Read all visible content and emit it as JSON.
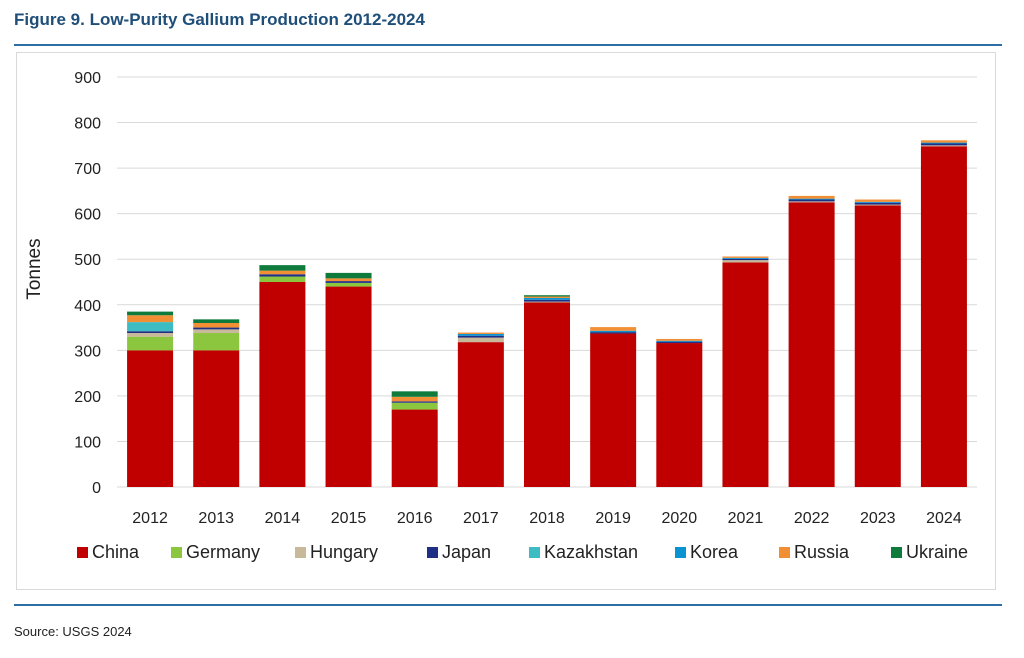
{
  "figure": {
    "title": "Figure 9. Low-Purity Gallium Production 2012-2024",
    "source": "Source: USGS 2024"
  },
  "chart_data": {
    "type": "bar",
    "stacked": true,
    "ylabel": "Tonnes",
    "ylim": [
      0,
      900
    ],
    "yticks": [
      0,
      100,
      200,
      300,
      400,
      500,
      600,
      700,
      800,
      900
    ],
    "grid": true,
    "legend_position": "bottom",
    "categories": [
      "2012",
      "2013",
      "2014",
      "2015",
      "2016",
      "2017",
      "2018",
      "2019",
      "2020",
      "2021",
      "2022",
      "2023",
      "2024"
    ],
    "series": [
      {
        "name": "China",
        "color": "#c00000",
        "values": [
          300,
          300,
          450,
          440,
          170,
          318,
          405,
          337,
          316,
          493,
          625,
          618,
          748
        ]
      },
      {
        "name": "Germany",
        "color": "#8cc63f",
        "values": [
          30,
          38,
          12,
          8,
          15,
          0,
          0,
          0,
          0,
          0,
          0,
          0,
          0
        ]
      },
      {
        "name": "Hungary",
        "color": "#c8b99b",
        "values": [
          8,
          8,
          0,
          0,
          0,
          10,
          2,
          0,
          0,
          5,
          2,
          2,
          2
        ]
      },
      {
        "name": "Japan",
        "color": "#1f2f86",
        "values": [
          4,
          4,
          5,
          4,
          3,
          4,
          4,
          3,
          3,
          3,
          4,
          4,
          4
        ]
      },
      {
        "name": "Kazakhstan",
        "color": "#3dbdc3",
        "values": [
          20,
          0,
          0,
          0,
          0,
          0,
          0,
          0,
          0,
          0,
          0,
          0,
          0
        ]
      },
      {
        "name": "Korea",
        "color": "#0b93d1",
        "values": [
          0,
          0,
          0,
          0,
          0,
          4,
          4,
          3,
          2,
          2,
          2,
          2,
          2
        ]
      },
      {
        "name": "Russia",
        "color": "#f28e34",
        "values": [
          15,
          10,
          8,
          6,
          10,
          3,
          3,
          8,
          4,
          3,
          6,
          5,
          5
        ]
      },
      {
        "name": "Ukraine",
        "color": "#0e7a3c",
        "values": [
          8,
          8,
          12,
          12,
          12,
          0,
          3,
          0,
          0,
          0,
          0,
          0,
          0
        ]
      }
    ]
  }
}
